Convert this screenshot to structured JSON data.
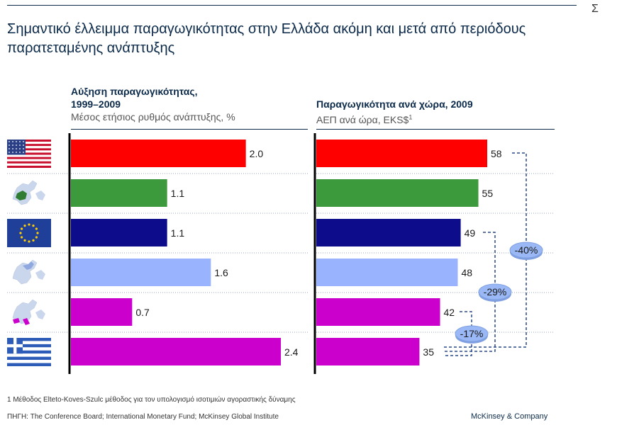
{
  "sigma": "Σ",
  "title": "Σημαντικό έλλειμμα παραγωγικότητας στην Ελλάδα ακόμη και μετά από περιόδους παρατεταμένης ανάπτυξης",
  "colors": {
    "usa": "#ff0000",
    "c2": "#3c9a3c",
    "eu": "#0d0d8c",
    "c4": "#99b3ff",
    "c5": "#cc00cc",
    "greece": "#cc00cc"
  },
  "rows": [
    {
      "flag": "usa-flag-icon",
      "color": "#ff0000"
    },
    {
      "flag": "europe-map-highlight-icon",
      "color": "#3c9a3c"
    },
    {
      "flag": "eu-flag-icon",
      "color": "#0d0d8c"
    },
    {
      "flag": "europe-map-icon",
      "color": "#99b3ff"
    },
    {
      "flag": "southern-europe-map-icon",
      "color": "#cc00cc"
    },
    {
      "flag": "greece-flag-icon",
      "color": "#cc00cc"
    }
  ],
  "left_header": {
    "title_1": "Αύξηση παραγωγικότητας,",
    "title_2": "1999–2009",
    "subtitle": "Μέσος ετήσιος ρυθμός ανάπτυξης, %"
  },
  "right_header": {
    "title": "Παραγωγικότητα ανά χώρα, 2009",
    "subtitle": "ΑΕΠ ανά ώρα, EKS$",
    "superscript": "1"
  },
  "chart_data": [
    {
      "type": "bar",
      "orientation": "horizontal",
      "title": "Αύξηση παραγωγικότητας, 1999–2009",
      "subtitle": "Μέσος ετήσιος ρυθμός ανάπτυξης, %",
      "values": [
        2.0,
        1.1,
        1.1,
        1.6,
        0.7,
        2.4
      ],
      "labels": [
        "2.0",
        "1.1",
        "1.1",
        "1.6",
        "0.7",
        "2.4"
      ],
      "xlim": [
        0,
        2.4
      ]
    },
    {
      "type": "bar",
      "orientation": "horizontal",
      "title": "Παραγωγικότητα ανά χώρα, 2009",
      "subtitle": "ΑΕΠ ανά ώρα, EKS$1",
      "values": [
        58,
        55,
        49,
        48,
        42,
        35
      ],
      "labels": [
        "58",
        "55",
        "49",
        "48",
        "42",
        "35"
      ],
      "xlim": [
        0,
        58
      ],
      "annotations": [
        {
          "from_row": 0,
          "to_row": 5,
          "label": "-40%"
        },
        {
          "from_row": 2,
          "to_row": 5,
          "label": "-29%"
        },
        {
          "from_row": 4,
          "to_row": 5,
          "label": "-17%"
        }
      ]
    }
  ],
  "footnote": "1 Μέθοδος Elteto-Koves-Szulc μέθοδος για τον υπολογισμό ισοτιμιών αγοραστικής δύναμης",
  "source": "ΠΗΓΗ: The Conference Board; International Monetary Fund; McKinsey Global Institute",
  "brand": "McKinsey & Company"
}
